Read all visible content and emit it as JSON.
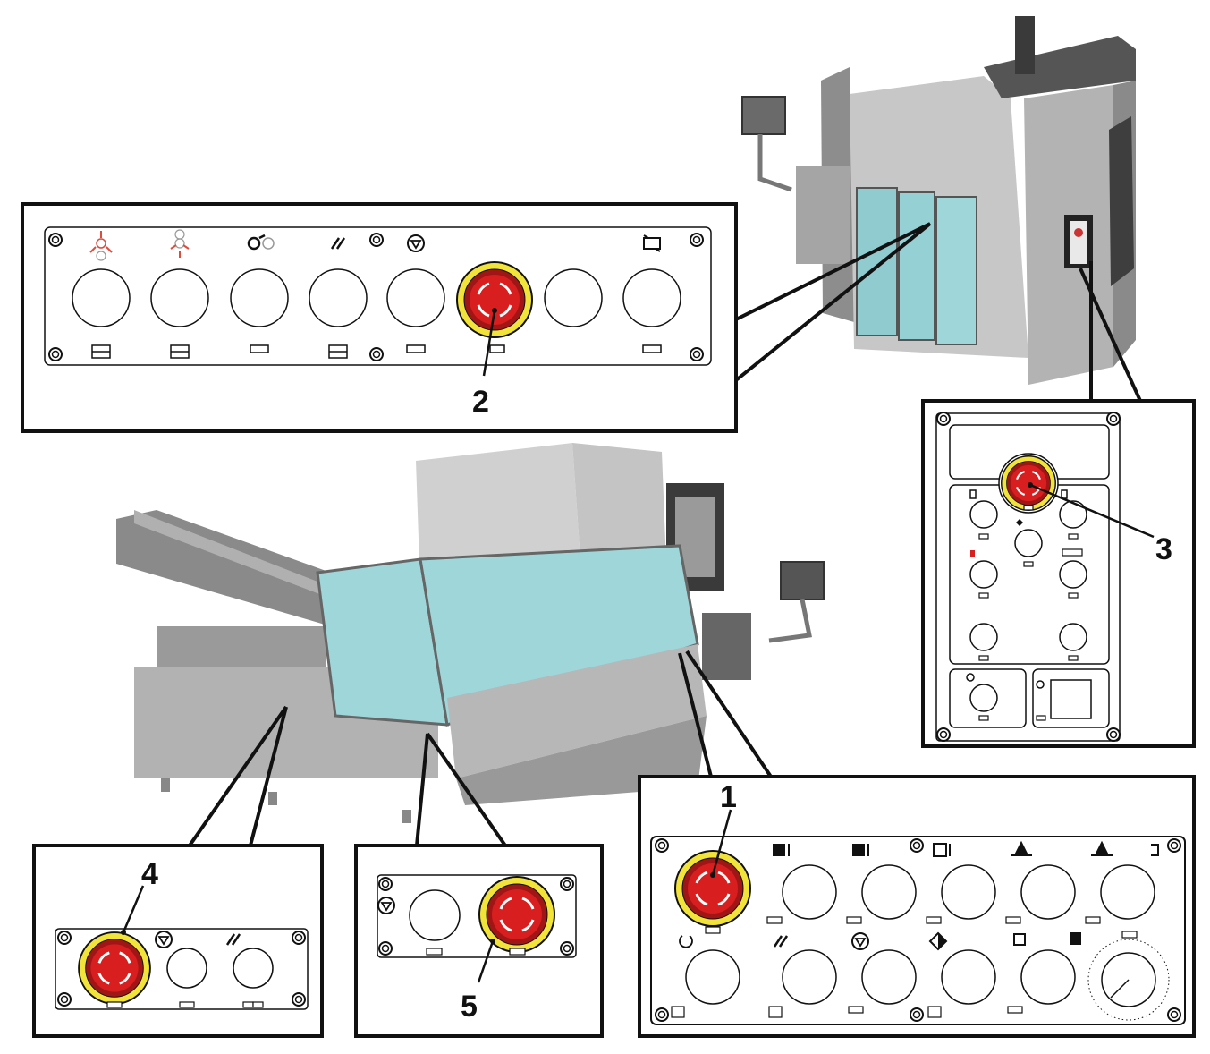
{
  "callouts": [
    "1",
    "2",
    "3",
    "4",
    "5"
  ],
  "colors": {
    "emergency_red": "#d81e1e",
    "emergency_ring": "#f2e33a",
    "glass": "#9fd6d9",
    "machine_grey": "#b5b5b5",
    "symbol_red": "#e04b3c",
    "frame": "#111111"
  },
  "panels": {
    "panel_1": {
      "emergency_button": true,
      "top_row_icons": [
        "cabinet-up-icon",
        "cabinet-up-icon",
        "cabinet-grid-up-icon",
        "lamp-icon",
        "lamp-icon",
        "bracket-icon"
      ],
      "bottom_row_icons": [
        "power-icon",
        "slash-icon",
        "stop-triangle-icon",
        "diamond-icon",
        "cycle-icon",
        "hand-icon"
      ],
      "has_rotary_dial": true
    },
    "panel_2": {
      "icons": [
        "arrows-out-icon",
        "arrows-in-icon",
        "rotate-icon",
        "slash-icon",
        "stop-triangle-icon",
        "emergency",
        "blank",
        "battery-icon"
      ]
    },
    "panel_3": {
      "icons": [
        "door-icon",
        "door-icon",
        "diamond-icon",
        "red-door-icon",
        "box-icon",
        "tool-icon",
        "tool-icon",
        "key-icon",
        "clock-icon"
      ]
    },
    "panel_4": {
      "icons": [
        "emergency",
        "stop-triangle-icon",
        "slash-icon"
      ]
    },
    "panel_5": {
      "icons": [
        "stop-triangle-icon",
        "emergency"
      ]
    }
  }
}
